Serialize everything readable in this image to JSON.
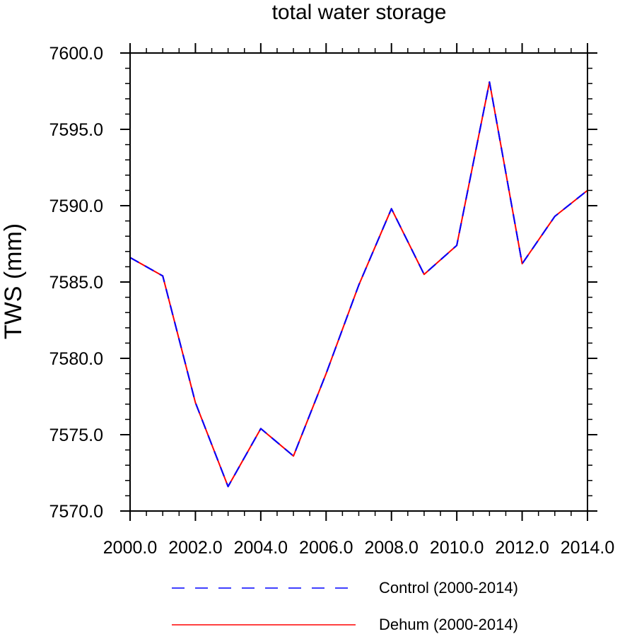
{
  "chart_data": {
    "type": "line",
    "title": "total water storage",
    "xlabel": "",
    "ylabel": "TWS  (mm)",
    "xlim": [
      2000,
      2014
    ],
    "ylim": [
      7570,
      7600
    ],
    "x_ticks": [
      2000,
      2002,
      2004,
      2006,
      2008,
      2010,
      2012,
      2014
    ],
    "x_tick_labels": [
      "2000.0",
      "2002.0",
      "2004.0",
      "2006.0",
      "2008.0",
      "2010.0",
      "2012.0",
      "2014.0"
    ],
    "y_ticks": [
      7570,
      7575,
      7580,
      7585,
      7590,
      7595,
      7600
    ],
    "y_tick_labels": [
      "7570.0",
      "7575.0",
      "7580.0",
      "7585.0",
      "7590.0",
      "7595.0",
      "7600.0"
    ],
    "grid": false,
    "legend_position": "bottom",
    "x": [
      2000,
      2001,
      2002,
      2003,
      2004,
      2005,
      2006,
      2007,
      2008,
      2009,
      2010,
      2011,
      2012,
      2013,
      2014
    ],
    "series": [
      {
        "name": "Control (2000-2014)",
        "color": "#0000ff",
        "style": "dashed",
        "values": [
          7586.6,
          7585.4,
          7577.1,
          7571.6,
          7575.4,
          7573.6,
          7579.0,
          7584.8,
          7589.8,
          7585.5,
          7587.4,
          7598.1,
          7586.2,
          7589.3,
          7591.0
        ]
      },
      {
        "name": "Dehum (2000-2014)",
        "color": "#ff0000",
        "style": "solid",
        "values": [
          7586.6,
          7585.4,
          7577.1,
          7571.6,
          7575.4,
          7573.6,
          7579.0,
          7584.8,
          7589.8,
          7585.5,
          7587.4,
          7598.1,
          7586.2,
          7589.3,
          7591.0
        ]
      }
    ]
  }
}
